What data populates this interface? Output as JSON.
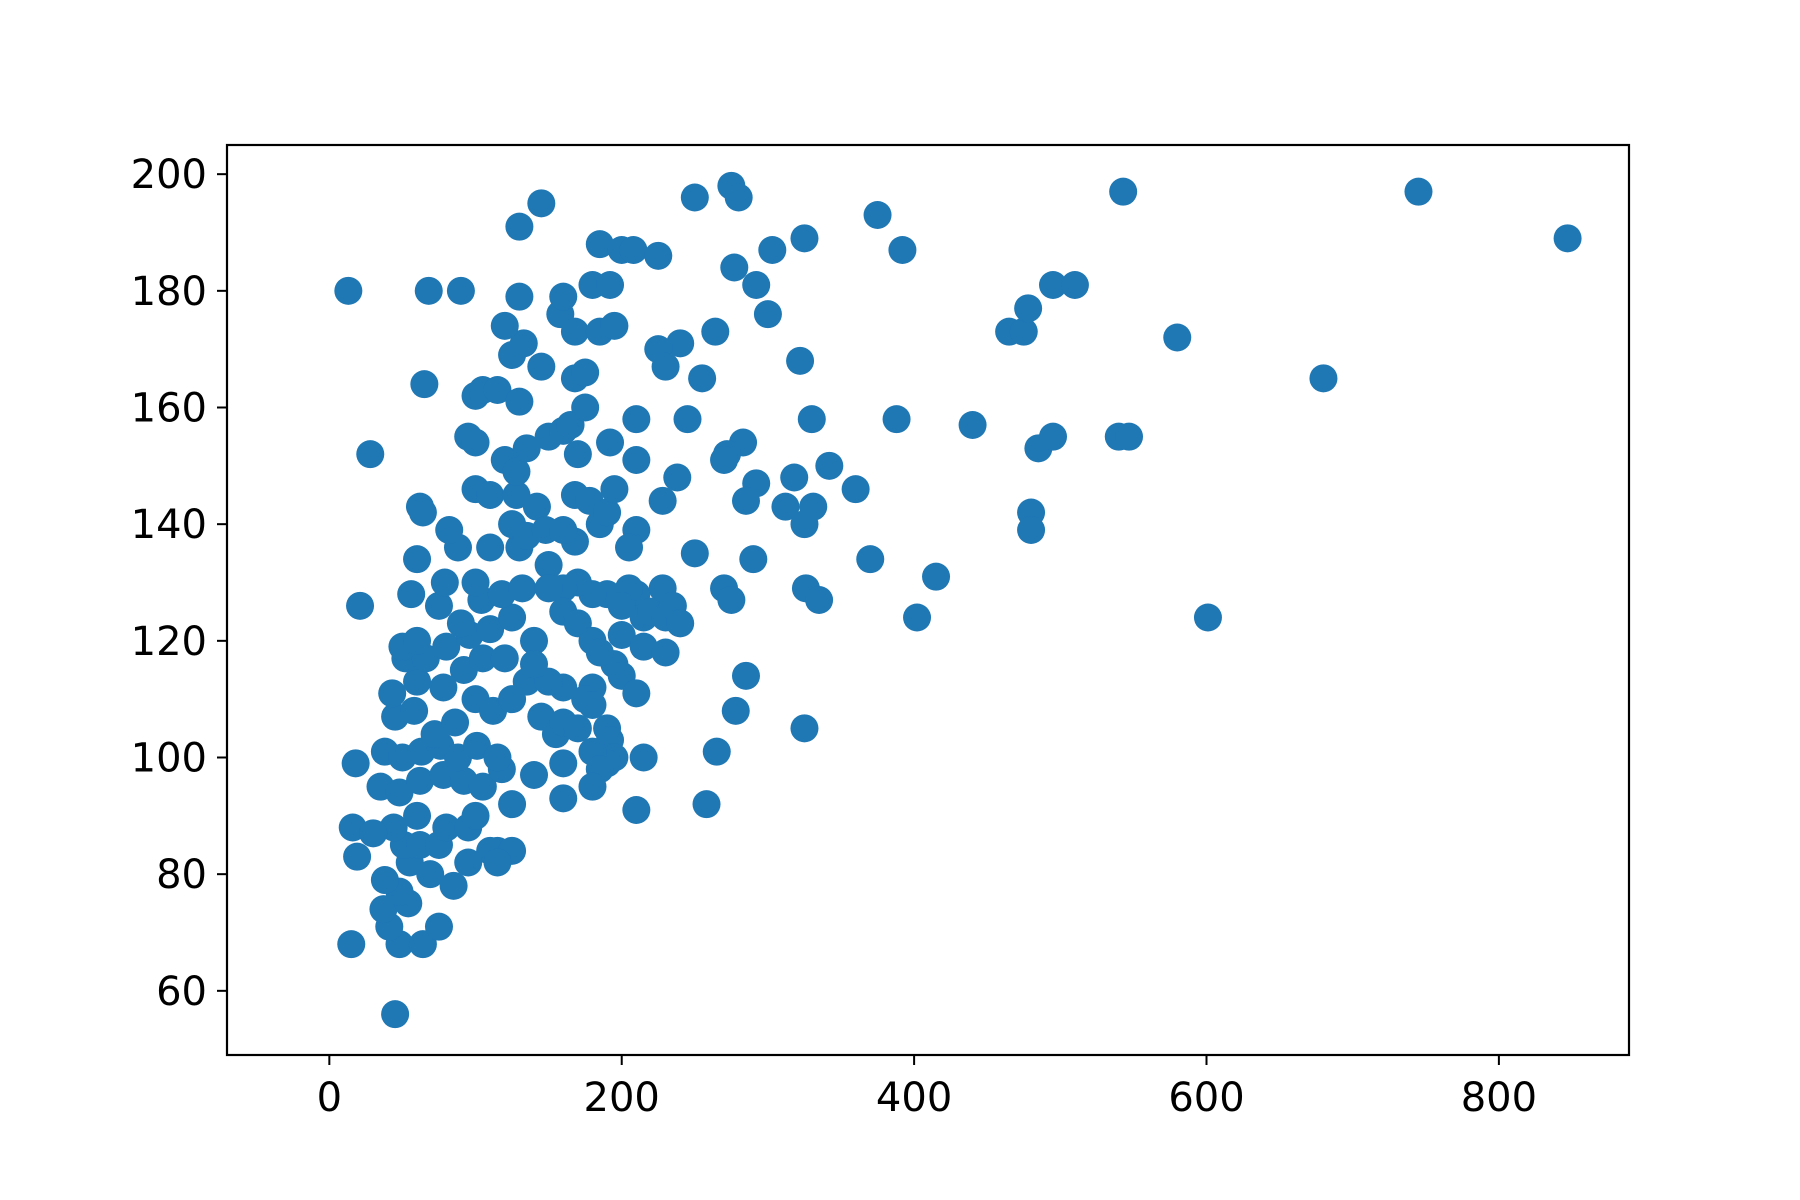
{
  "chart_data": {
    "type": "scatter",
    "title": "",
    "xlabel": "",
    "ylabel": "",
    "xlim": [
      -70,
      889
    ],
    "ylim": [
      49,
      205
    ],
    "xticks": [
      0,
      200,
      400,
      600,
      800
    ],
    "yticks": [
      60,
      80,
      100,
      120,
      140,
      160,
      180,
      200
    ],
    "grid": false,
    "legend": "none",
    "series": [
      {
        "color": "#1f77b4",
        "points": [
          [
            13,
            180
          ],
          [
            28,
            152
          ],
          [
            21,
            126
          ],
          [
            18,
            99
          ],
          [
            16,
            88
          ],
          [
            19,
            83
          ],
          [
            15,
            68
          ],
          [
            45,
            56
          ],
          [
            48,
            68
          ],
          [
            64,
            68
          ],
          [
            41,
            71
          ],
          [
            75,
            71
          ],
          [
            37,
            74
          ],
          [
            54,
            75
          ],
          [
            48,
            77
          ],
          [
            38,
            79
          ],
          [
            55,
            82
          ],
          [
            69,
            80
          ],
          [
            85,
            78
          ],
          [
            51,
            85
          ],
          [
            62,
            85
          ],
          [
            75,
            85
          ],
          [
            44,
            88
          ],
          [
            60,
            90
          ],
          [
            80,
            88
          ],
          [
            95,
            88
          ],
          [
            30,
            87
          ],
          [
            35,
            95
          ],
          [
            48,
            94
          ],
          [
            62,
            96
          ],
          [
            78,
            97
          ],
          [
            92,
            96
          ],
          [
            105,
            95
          ],
          [
            118,
            98
          ],
          [
            38,
            101
          ],
          [
            50,
            100
          ],
          [
            63,
            101
          ],
          [
            76,
            102
          ],
          [
            88,
            100
          ],
          [
            101,
            102
          ],
          [
            115,
            100
          ],
          [
            45,
            107
          ],
          [
            58,
            108
          ],
          [
            72,
            104
          ],
          [
            86,
            106
          ],
          [
            100,
            110
          ],
          [
            112,
            108
          ],
          [
            125,
            110
          ],
          [
            43,
            111
          ],
          [
            60,
            113
          ],
          [
            78,
            112
          ],
          [
            92,
            115
          ],
          [
            105,
            117
          ],
          [
            120,
            117
          ],
          [
            135,
            113
          ],
          [
            52,
            117
          ],
          [
            66,
            117
          ],
          [
            80,
            119
          ],
          [
            96,
            121
          ],
          [
            110,
            122
          ],
          [
            125,
            124
          ],
          [
            140,
            120
          ],
          [
            50,
            119
          ],
          [
            60,
            120
          ],
          [
            75,
            126
          ],
          [
            90,
            123
          ],
          [
            104,
            127
          ],
          [
            118,
            128
          ],
          [
            132,
            129
          ],
          [
            56,
            128
          ],
          [
            79,
            130
          ],
          [
            100,
            130
          ],
          [
            88,
            136
          ],
          [
            110,
            136
          ],
          [
            60,
            134
          ],
          [
            82,
            139
          ],
          [
            130,
            136
          ],
          [
            150,
            133
          ],
          [
            62,
            143
          ],
          [
            64,
            142
          ],
          [
            100,
            146
          ],
          [
            110,
            145
          ],
          [
            128,
            145
          ],
          [
            142,
            143
          ],
          [
            125,
            140
          ],
          [
            135,
            138
          ],
          [
            148,
            139
          ],
          [
            95,
            155
          ],
          [
            100,
            154
          ],
          [
            120,
            151
          ],
          [
            128,
            149
          ],
          [
            135,
            153
          ],
          [
            150,
            155
          ],
          [
            160,
            156
          ],
          [
            100,
            162
          ],
          [
            105,
            163
          ],
          [
            115,
            163
          ],
          [
            130,
            161
          ],
          [
            125,
            169
          ],
          [
            133,
            171
          ],
          [
            145,
            167
          ],
          [
            120,
            174
          ],
          [
            130,
            179
          ],
          [
            158,
            176
          ],
          [
            160,
            179
          ],
          [
            168,
            173
          ],
          [
            65,
            164
          ],
          [
            68,
            180
          ],
          [
            90,
            180
          ],
          [
            130,
            191
          ],
          [
            145,
            195
          ],
          [
            165,
            157
          ],
          [
            168,
            165
          ],
          [
            175,
            166
          ],
          [
            175,
            160
          ],
          [
            170,
            152
          ],
          [
            168,
            145
          ],
          [
            168,
            137
          ],
          [
            160,
            139
          ],
          [
            178,
            144
          ],
          [
            185,
            140
          ],
          [
            190,
            142
          ],
          [
            195,
            146
          ],
          [
            192,
            154
          ],
          [
            180,
            181
          ],
          [
            192,
            181
          ],
          [
            185,
            173
          ],
          [
            195,
            174
          ],
          [
            185,
            188
          ],
          [
            200,
            187
          ],
          [
            208,
            187
          ],
          [
            225,
            186
          ],
          [
            210,
            158
          ],
          [
            210,
            151
          ],
          [
            210,
            139
          ],
          [
            205,
            136
          ],
          [
            210,
            128
          ],
          [
            205,
            129
          ],
          [
            190,
            128
          ],
          [
            180,
            128
          ],
          [
            170,
            130
          ],
          [
            160,
            129
          ],
          [
            150,
            129
          ],
          [
            160,
            125
          ],
          [
            170,
            123
          ],
          [
            180,
            120
          ],
          [
            200,
            121
          ],
          [
            215,
            124
          ],
          [
            200,
            126
          ],
          [
            220,
            125
          ],
          [
            230,
            124
          ],
          [
            228,
            129
          ],
          [
            235,
            126
          ],
          [
            240,
            123
          ],
          [
            215,
            119
          ],
          [
            230,
            118
          ],
          [
            195,
            116
          ],
          [
            185,
            118
          ],
          [
            200,
            114
          ],
          [
            210,
            111
          ],
          [
            180,
            112
          ],
          [
            175,
            110
          ],
          [
            160,
            112
          ],
          [
            150,
            113
          ],
          [
            140,
            116
          ],
          [
            145,
            107
          ],
          [
            155,
            104
          ],
          [
            160,
            106
          ],
          [
            170,
            105
          ],
          [
            180,
            109
          ],
          [
            190,
            105
          ],
          [
            192,
            103
          ],
          [
            195,
            100
          ],
          [
            190,
            99
          ],
          [
            180,
            101
          ],
          [
            185,
            98
          ],
          [
            180,
            95
          ],
          [
            160,
            99
          ],
          [
            160,
            93
          ],
          [
            140,
            97
          ],
          [
            125,
            92
          ],
          [
            115,
            84
          ],
          [
            110,
            84
          ],
          [
            125,
            84
          ],
          [
            115,
            82
          ],
          [
            95,
            82
          ],
          [
            100,
            90
          ],
          [
            210,
            91
          ],
          [
            215,
            100
          ],
          [
            228,
            144
          ],
          [
            238,
            148
          ],
          [
            245,
            158
          ],
          [
            255,
            165
          ],
          [
            240,
            171
          ],
          [
            225,
            170
          ],
          [
            230,
            167
          ],
          [
            250,
            196
          ],
          [
            264,
            173
          ],
          [
            275,
            198
          ],
          [
            280,
            196
          ],
          [
            277,
            184
          ],
          [
            292,
            181
          ],
          [
            300,
            176
          ],
          [
            303,
            187
          ],
          [
            325,
            189
          ],
          [
            322,
            168
          ],
          [
            330,
            158
          ],
          [
            318,
            148
          ],
          [
            312,
            143
          ],
          [
            325,
            140
          ],
          [
            331,
            143
          ],
          [
            342,
            150
          ],
          [
            292,
            147
          ],
          [
            283,
            154
          ],
          [
            272,
            152
          ],
          [
            270,
            151
          ],
          [
            285,
            144
          ],
          [
            290,
            134
          ],
          [
            250,
            135
          ],
          [
            270,
            129
          ],
          [
            275,
            127
          ],
          [
            326,
            129
          ],
          [
            335,
            127
          ],
          [
            285,
            114
          ],
          [
            278,
            108
          ],
          [
            325,
            105
          ],
          [
            265,
            101
          ],
          [
            258,
            92
          ],
          [
            360,
            146
          ],
          [
            370,
            134
          ],
          [
            375,
            193
          ],
          [
            392,
            187
          ],
          [
            388,
            158
          ],
          [
            402,
            124
          ],
          [
            415,
            131
          ],
          [
            440,
            157
          ],
          [
            465,
            173
          ],
          [
            475,
            173
          ],
          [
            478,
            177
          ],
          [
            480,
            142
          ],
          [
            480,
            139
          ],
          [
            485,
            153
          ],
          [
            495,
            155
          ],
          [
            495,
            181
          ],
          [
            510,
            181
          ],
          [
            540,
            155
          ],
          [
            547,
            155
          ],
          [
            543,
            197
          ],
          [
            580,
            172
          ],
          [
            601,
            124
          ],
          [
            680,
            165
          ],
          [
            745,
            197
          ],
          [
            847,
            189
          ]
        ]
      }
    ]
  }
}
